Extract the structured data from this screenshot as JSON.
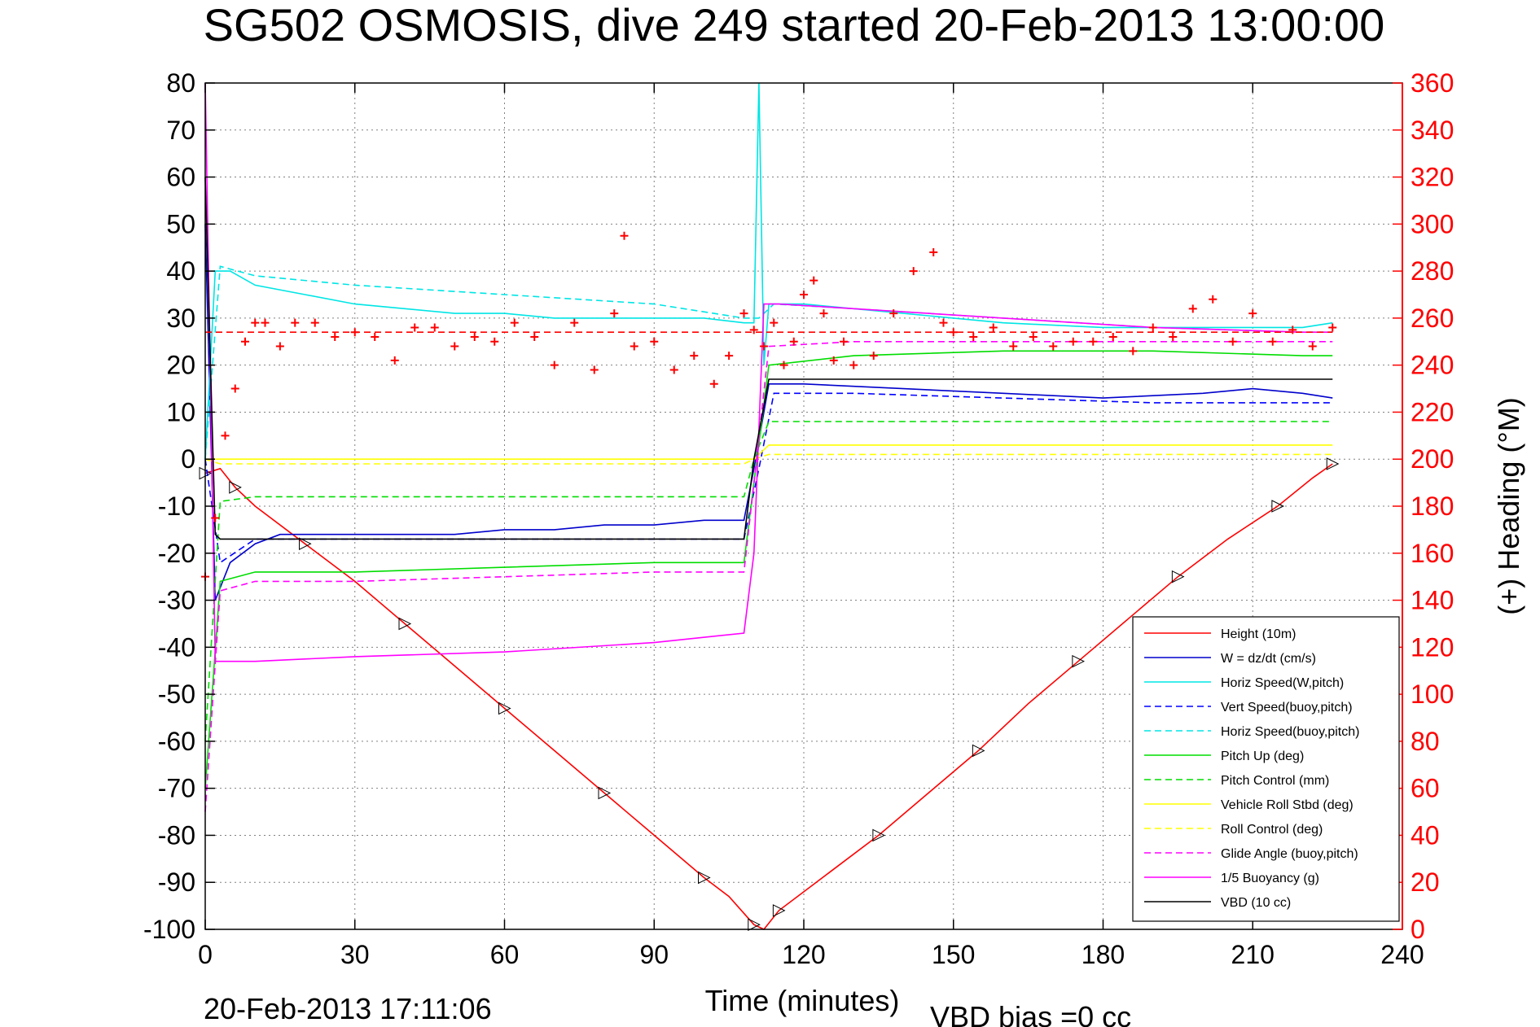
{
  "title": "SG502 OSMOSIS, dive 249 started 20-Feb-2013 13:00:00",
  "footer_timestamp": "20-Feb-2013 17:11:06",
  "footer_vbd_bias": "VBD bias =0 cc",
  "colors": {
    "right_axis": "#ff0000",
    "grid": "#808080",
    "background": "#ffffff"
  },
  "chart_data": {
    "type": "line",
    "title": "SG502 OSMOSIS, dive 249 started 20-Feb-2013 13:00:00",
    "xlabel": "Time (minutes)",
    "ylabel": "",
    "y2label": "(+) Heading (°M)",
    "xlim": [
      0,
      240
    ],
    "ylim": [
      -100,
      80
    ],
    "y2lim": [
      0,
      360
    ],
    "grid": true,
    "legend_position": "bottom-right",
    "x_ticks": [
      "0",
      "30",
      "60",
      "90",
      "120",
      "150",
      "180",
      "210",
      "240"
    ],
    "y_ticks": [
      "80",
      "70",
      "60",
      "50",
      "40",
      "30",
      "20",
      "10",
      "0",
      "-10",
      "-20",
      "-30",
      "-40",
      "-50",
      "-60",
      "-70",
      "-80",
      "-90",
      "-100"
    ],
    "y2_ticks": [
      "360",
      "340",
      "320",
      "300",
      "280",
      "260",
      "240",
      "220",
      "200",
      "180",
      "160",
      "140",
      "120",
      "100",
      "80",
      "60",
      "40",
      "20",
      "0"
    ],
    "series": [
      {
        "name": "Height (10m)",
        "color": "#ff0000",
        "style": "solid",
        "axis": "left",
        "x": [
          0,
          3,
          6,
          10,
          20,
          30,
          40,
          50,
          60,
          70,
          80,
          90,
          100,
          105,
          110,
          112,
          115,
          125,
          135,
          145,
          155,
          165,
          175,
          185,
          195,
          205,
          215,
          222,
          226
        ],
        "y": [
          -3,
          -2,
          -6,
          -10,
          -18,
          -26,
          -35,
          -44,
          -53,
          -62,
          -71,
          -80,
          -89,
          -93,
          -99,
          -100,
          -96,
          -88,
          -80,
          -71,
          -62,
          -52,
          -43,
          -34,
          -25,
          -17,
          -10,
          -4,
          -1
        ]
      },
      {
        "name": "W = dz/dt (cm/s)",
        "color": "#0000cc",
        "style": "solid",
        "axis": "left",
        "x": [
          0,
          2,
          5,
          10,
          15,
          20,
          30,
          40,
          50,
          60,
          70,
          80,
          90,
          100,
          108,
          110,
          113,
          120,
          140,
          160,
          180,
          200,
          210,
          220,
          226
        ],
        "y": [
          50,
          -30,
          -22,
          -18,
          -16,
          -16,
          -16,
          -16,
          -16,
          -15,
          -15,
          -14,
          -14,
          -13,
          -13,
          -2,
          16,
          16,
          15,
          14,
          13,
          14,
          15,
          14,
          13
        ]
      },
      {
        "name": "Horiz Speed(W,pitch)",
        "color": "#00e5e5",
        "style": "solid",
        "axis": "left",
        "x": [
          0,
          2,
          5,
          10,
          20,
          30,
          40,
          50,
          60,
          70,
          80,
          90,
          100,
          108,
          110,
          111,
          112,
          113,
          115,
          120,
          140,
          160,
          180,
          200,
          210,
          220,
          226
        ],
        "y": [
          0,
          40,
          40,
          37,
          35,
          33,
          32,
          31,
          31,
          30,
          30,
          30,
          30,
          29,
          29,
          80,
          20,
          33,
          33,
          33,
          31,
          29,
          28,
          28,
          28,
          28,
          29
        ]
      },
      {
        "name": "Vert Speed(buoy,pitch)",
        "color": "#0000ff",
        "style": "dashed",
        "axis": "left",
        "x": [
          0,
          3,
          10,
          30,
          60,
          90,
          108,
          111,
          114,
          130,
          160,
          190,
          220,
          226
        ],
        "y": [
          0,
          -22,
          -17,
          -17,
          -17,
          -17,
          -17,
          -2,
          14,
          14,
          13,
          12,
          12,
          12
        ]
      },
      {
        "name": "Horiz Speed(buoy,pitch)",
        "color": "#00e5e5",
        "style": "dashed",
        "axis": "left",
        "x": [
          0,
          3,
          10,
          30,
          60,
          90,
          108,
          111,
          114,
          130,
          160,
          190,
          220,
          226
        ],
        "y": [
          0,
          41,
          39,
          37,
          35,
          33,
          30,
          30,
          33,
          32,
          30,
          28,
          27,
          27
        ]
      },
      {
        "name": "Pitch Up (deg)",
        "color": "#00dd00",
        "style": "solid",
        "axis": "left",
        "x": [
          0,
          3,
          10,
          30,
          60,
          90,
          108,
          110,
          113,
          130,
          160,
          190,
          220,
          226
        ],
        "y": [
          -70,
          -26,
          -24,
          -24,
          -23,
          -22,
          -22,
          -5,
          20,
          22,
          23,
          23,
          22,
          22
        ]
      },
      {
        "name": "Pitch Control (mm)",
        "color": "#00dd00",
        "style": "dashed",
        "axis": "left",
        "x": [
          0,
          3,
          10,
          30,
          60,
          90,
          108,
          110,
          113,
          130,
          160,
          190,
          220,
          226
        ],
        "y": [
          -60,
          -9,
          -8,
          -8,
          -8,
          -8,
          -8,
          0,
          8,
          8,
          8,
          8,
          8,
          8
        ]
      },
      {
        "name": "Vehicle Roll Stbd (deg)",
        "color": "#ffff00",
        "style": "solid",
        "axis": "left",
        "x": [
          0,
          3,
          10,
          30,
          60,
          90,
          108,
          110,
          113,
          130,
          160,
          190,
          220,
          226
        ],
        "y": [
          0,
          0,
          0,
          0,
          0,
          0,
          0,
          0,
          3,
          3,
          3,
          3,
          3,
          3
        ]
      },
      {
        "name": "Roll Control (deg)",
        "color": "#ffff00",
        "style": "dashed",
        "axis": "left",
        "x": [
          0,
          3,
          10,
          30,
          60,
          90,
          108,
          110,
          113,
          130,
          160,
          190,
          220,
          226
        ],
        "y": [
          0,
          -1,
          -1,
          -1,
          -1,
          -1,
          -1,
          0,
          1,
          1,
          1,
          1,
          1,
          1
        ]
      },
      {
        "name": "Glide Angle (buoy,pitch)",
        "color": "#ff00ff",
        "style": "dashed",
        "axis": "left",
        "x": [
          0,
          3,
          10,
          30,
          60,
          90,
          108,
          110,
          113,
          130,
          160,
          190,
          220,
          226
        ],
        "y": [
          -75,
          -28,
          -26,
          -26,
          -25,
          -24,
          -24,
          -5,
          24,
          25,
          25,
          25,
          25,
          25
        ]
      },
      {
        "name": "1/5 Buoyancy (g)",
        "color": "#ff00ff",
        "style": "solid",
        "axis": "left",
        "x": [
          0,
          1,
          2,
          3,
          10,
          30,
          60,
          90,
          108,
          110,
          112,
          115,
          130,
          160,
          190,
          220,
          226
        ],
        "y": [
          80,
          20,
          -43,
          -43,
          -43,
          -42,
          -41,
          -39,
          -37,
          -20,
          33,
          33,
          32,
          30,
          28,
          27,
          27
        ]
      },
      {
        "name": "VBD (10 cc)",
        "color": "#000000",
        "style": "solid",
        "axis": "left",
        "x": [
          0,
          2,
          3,
          20,
          60,
          90,
          108,
          110,
          113,
          140,
          180,
          220,
          226
        ],
        "y": [
          60,
          -16,
          -17,
          -17,
          -17,
          -17,
          -17,
          0,
          17,
          17,
          17,
          17,
          17
        ]
      },
      {
        "name": "",
        "color": "#ff0000",
        "style": "dashed",
        "axis": "left",
        "x": [
          0,
          226
        ],
        "y": [
          27,
          27
        ]
      },
      {
        "name": "",
        "color": "#ff0000",
        "style": "markers-plus",
        "axis": "right",
        "x": [
          0,
          2,
          4,
          6,
          8,
          10,
          12,
          15,
          18,
          22,
          26,
          30,
          34,
          38,
          42,
          46,
          50,
          54,
          58,
          62,
          66,
          70,
          74,
          78,
          82,
          84,
          86,
          90,
          94,
          98,
          102,
          105,
          108,
          110,
          112,
          114,
          116,
          118,
          120,
          122,
          124,
          126,
          128,
          130,
          134,
          138,
          142,
          146,
          148,
          150,
          154,
          158,
          162,
          166,
          170,
          174,
          178,
          182,
          186,
          190,
          194,
          198,
          202,
          206,
          210,
          214,
          218,
          222,
          226
        ],
        "y": [
          150,
          175,
          210,
          230,
          250,
          258,
          258,
          248,
          258,
          258,
          252,
          254,
          252,
          242,
          256,
          256,
          248,
          252,
          250,
          258,
          252,
          240,
          258,
          238,
          262,
          295,
          248,
          250,
          238,
          244,
          232,
          244,
          262,
          255,
          248,
          258,
          240,
          250,
          270,
          276,
          262,
          242,
          250,
          240,
          244,
          262,
          280,
          288,
          258,
          254,
          252,
          256,
          248,
          252,
          248,
          250,
          250,
          252,
          246,
          256,
          252,
          264,
          268,
          250,
          262,
          250,
          255,
          248,
          256
        ]
      }
    ]
  }
}
